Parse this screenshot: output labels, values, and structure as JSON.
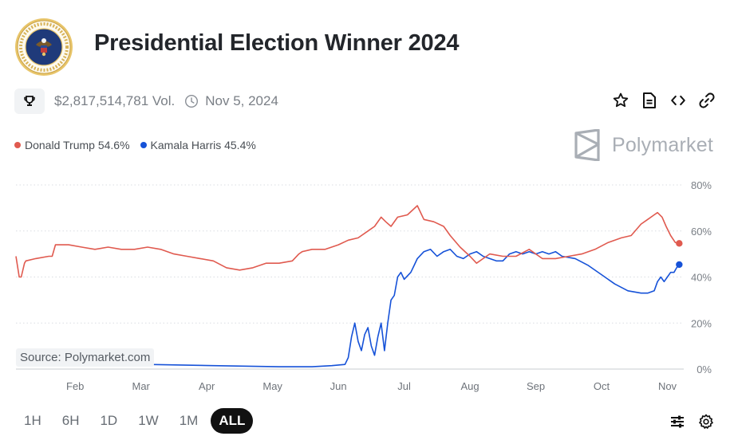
{
  "header": {
    "title": "Presidential Election Winner 2024",
    "volume": "$2,817,514,781 Vol.",
    "end_date": "Nov 5, 2024",
    "seal_icon": "presidential-seal-icon"
  },
  "legend": {
    "trump": "Donald Trump 54.6%",
    "harris": "Kamala Harris 45.4%"
  },
  "brand": "Polymarket",
  "source": "Source: Polymarket.com",
  "ranges": [
    "1H",
    "6H",
    "1D",
    "1W",
    "1M",
    "ALL"
  ],
  "active_range": "ALL",
  "colors": {
    "trump": "#e05a4f",
    "harris": "#1652d8",
    "grid": "#d9dde1"
  },
  "chart_data": {
    "type": "line",
    "x_tick_labels": [
      "Feb",
      "Mar",
      "Apr",
      "May",
      "Jun",
      "Jul",
      "Aug",
      "Sep",
      "Oct",
      "Nov"
    ],
    "y_tick_labels": [
      "80%",
      "60%",
      "40%",
      "20%",
      "0%"
    ],
    "y_ticks": [
      80,
      60,
      40,
      20,
      0
    ],
    "ylim": [
      0,
      80
    ],
    "xlim": [
      0,
      10.1
    ],
    "y_axis": "right",
    "series": [
      {
        "name": "Donald Trump",
        "color": "#e05a4f",
        "x": [
          0,
          0.05,
          0.08,
          0.13,
          0.15,
          0.3,
          0.5,
          0.55,
          0.6,
          0.8,
          1.0,
          1.2,
          1.4,
          1.6,
          1.8,
          2.0,
          2.2,
          2.4,
          2.6,
          2.8,
          3.0,
          3.2,
          3.4,
          3.6,
          3.8,
          4.0,
          4.2,
          4.3,
          4.35,
          4.5,
          4.7,
          4.9,
          5.05,
          5.2,
          5.35,
          5.45,
          5.55,
          5.62,
          5.7,
          5.8,
          5.95,
          6.1,
          6.2,
          6.35,
          6.5,
          6.6,
          6.75,
          6.9,
          7.0,
          7.1,
          7.2,
          7.4,
          7.6,
          7.8,
          8.0,
          8.2,
          8.4,
          8.6,
          8.8,
          9.0,
          9.2,
          9.35,
          9.5,
          9.6,
          9.7,
          9.75,
          9.82,
          9.88,
          9.95,
          10.02,
          10.08
        ],
        "y": [
          49,
          40,
          40,
          46,
          47,
          48,
          49,
          49,
          54,
          54,
          53,
          52,
          53,
          52,
          52,
          53,
          52,
          50,
          49,
          48,
          47,
          44,
          43,
          44,
          46,
          46,
          47,
          50,
          51,
          52,
          52,
          54,
          56,
          57,
          60,
          62,
          66,
          64,
          62,
          66,
          67,
          71,
          65,
          64,
          62,
          58,
          53,
          49,
          46,
          48,
          50,
          49,
          49,
          52,
          48,
          48,
          49,
          50,
          52,
          55,
          57,
          58,
          63,
          65,
          67,
          68,
          66,
          62,
          58,
          55,
          54.6
        ]
      },
      {
        "name": "Kamala Harris",
        "color": "#1652d8",
        "x": [
          0,
          0.05,
          0.5,
          1.0,
          2.0,
          3.0,
          4.0,
          4.5,
          4.8,
          5.0,
          5.05,
          5.1,
          5.15,
          5.2,
          5.25,
          5.3,
          5.35,
          5.4,
          5.45,
          5.5,
          5.55,
          5.6,
          5.65,
          5.7,
          5.75,
          5.8,
          5.85,
          5.9,
          6.0,
          6.05,
          6.1,
          6.2,
          6.3,
          6.4,
          6.5,
          6.6,
          6.7,
          6.8,
          6.9,
          7.0,
          7.1,
          7.2,
          7.3,
          7.4,
          7.5,
          7.6,
          7.7,
          7.8,
          7.9,
          8.0,
          8.1,
          8.2,
          8.3,
          8.5,
          8.7,
          8.9,
          9.1,
          9.3,
          9.5,
          9.6,
          9.7,
          9.75,
          9.8,
          9.85,
          9.9,
          9.95,
          10.0,
          10.04,
          10.08
        ],
        "y": [
          3,
          3,
          2,
          2,
          2,
          1.5,
          1,
          1,
          1.5,
          2,
          5,
          14,
          20,
          12,
          8,
          15,
          18,
          10,
          6,
          14,
          20,
          8,
          20,
          30,
          32,
          40,
          42,
          39,
          42,
          45,
          48,
          51,
          52,
          49,
          51,
          52,
          49,
          48,
          50,
          51,
          49,
          48,
          47,
          47,
          50,
          51,
          50,
          51,
          50,
          51,
          50,
          51,
          49,
          48,
          45,
          41,
          37,
          34,
          33,
          33,
          34,
          38,
          40,
          38,
          40,
          42,
          42,
          44,
          45.4
        ]
      }
    ]
  }
}
